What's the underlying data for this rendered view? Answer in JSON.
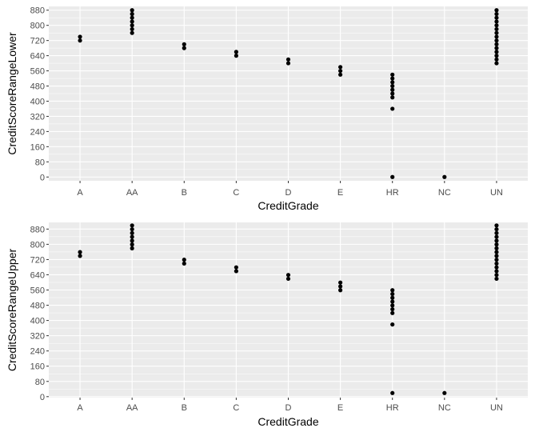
{
  "colors": {
    "panel_background": "#ebebeb",
    "grid_major": "#ffffff",
    "point": "#000000",
    "tick_text": "#4d4d4d",
    "axis_title": "#000000"
  },
  "chart_data": [
    {
      "type": "scatter",
      "xlabel": "CreditGrade",
      "ylabel": "CreditScoreRangeLower",
      "categories": [
        "A",
        "AA",
        "B",
        "C",
        "D",
        "E",
        "HR",
        "NC",
        "UN"
      ],
      "yticks": [
        0,
        80,
        160,
        240,
        320,
        400,
        480,
        560,
        640,
        720,
        800,
        880
      ],
      "ylim": [
        -20,
        900
      ],
      "grid": true,
      "legend": "none",
      "points": [
        {
          "x": "A",
          "y": 720
        },
        {
          "x": "A",
          "y": 740
        },
        {
          "x": "AA",
          "y": 760
        },
        {
          "x": "AA",
          "y": 780
        },
        {
          "x": "AA",
          "y": 800
        },
        {
          "x": "AA",
          "y": 820
        },
        {
          "x": "AA",
          "y": 840
        },
        {
          "x": "AA",
          "y": 860
        },
        {
          "x": "AA",
          "y": 880
        },
        {
          "x": "B",
          "y": 680
        },
        {
          "x": "B",
          "y": 700
        },
        {
          "x": "C",
          "y": 640
        },
        {
          "x": "C",
          "y": 660
        },
        {
          "x": "D",
          "y": 600
        },
        {
          "x": "D",
          "y": 620
        },
        {
          "x": "E",
          "y": 540
        },
        {
          "x": "E",
          "y": 560
        },
        {
          "x": "E",
          "y": 580
        },
        {
          "x": "HR",
          "y": 0
        },
        {
          "x": "HR",
          "y": 360
        },
        {
          "x": "HR",
          "y": 420
        },
        {
          "x": "HR",
          "y": 440
        },
        {
          "x": "HR",
          "y": 460
        },
        {
          "x": "HR",
          "y": 480
        },
        {
          "x": "HR",
          "y": 500
        },
        {
          "x": "HR",
          "y": 520
        },
        {
          "x": "HR",
          "y": 540
        },
        {
          "x": "NC",
          "y": 0
        },
        {
          "x": "UN",
          "y": 600
        },
        {
          "x": "UN",
          "y": 620
        },
        {
          "x": "UN",
          "y": 640
        },
        {
          "x": "UN",
          "y": 660
        },
        {
          "x": "UN",
          "y": 680
        },
        {
          "x": "UN",
          "y": 700
        },
        {
          "x": "UN",
          "y": 720
        },
        {
          "x": "UN",
          "y": 740
        },
        {
          "x": "UN",
          "y": 760
        },
        {
          "x": "UN",
          "y": 780
        },
        {
          "x": "UN",
          "y": 800
        },
        {
          "x": "UN",
          "y": 820
        },
        {
          "x": "UN",
          "y": 840
        },
        {
          "x": "UN",
          "y": 860
        },
        {
          "x": "UN",
          "y": 880
        }
      ]
    },
    {
      "type": "scatter",
      "xlabel": "CreditGrade",
      "ylabel": "CreditScoreRangeUpper",
      "categories": [
        "A",
        "AA",
        "B",
        "C",
        "D",
        "E",
        "HR",
        "NC",
        "UN"
      ],
      "yticks": [
        0,
        80,
        160,
        240,
        320,
        400,
        480,
        560,
        640,
        720,
        800,
        880
      ],
      "ylim": [
        -5,
        915
      ],
      "grid": true,
      "legend": "none",
      "points": [
        {
          "x": "A",
          "y": 739
        },
        {
          "x": "A",
          "y": 759
        },
        {
          "x": "AA",
          "y": 779
        },
        {
          "x": "AA",
          "y": 799
        },
        {
          "x": "AA",
          "y": 819
        },
        {
          "x": "AA",
          "y": 839
        },
        {
          "x": "AA",
          "y": 859
        },
        {
          "x": "AA",
          "y": 879
        },
        {
          "x": "AA",
          "y": 899
        },
        {
          "x": "B",
          "y": 699
        },
        {
          "x": "B",
          "y": 719
        },
        {
          "x": "C",
          "y": 659
        },
        {
          "x": "C",
          "y": 679
        },
        {
          "x": "D",
          "y": 619
        },
        {
          "x": "D",
          "y": 639
        },
        {
          "x": "E",
          "y": 559
        },
        {
          "x": "E",
          "y": 579
        },
        {
          "x": "E",
          "y": 599
        },
        {
          "x": "HR",
          "y": 19
        },
        {
          "x": "HR",
          "y": 379
        },
        {
          "x": "HR",
          "y": 439
        },
        {
          "x": "HR",
          "y": 459
        },
        {
          "x": "HR",
          "y": 479
        },
        {
          "x": "HR",
          "y": 499
        },
        {
          "x": "HR",
          "y": 519
        },
        {
          "x": "HR",
          "y": 539
        },
        {
          "x": "HR",
          "y": 559
        },
        {
          "x": "NC",
          "y": 19
        },
        {
          "x": "UN",
          "y": 619
        },
        {
          "x": "UN",
          "y": 639
        },
        {
          "x": "UN",
          "y": 659
        },
        {
          "x": "UN",
          "y": 679
        },
        {
          "x": "UN",
          "y": 699
        },
        {
          "x": "UN",
          "y": 719
        },
        {
          "x": "UN",
          "y": 739
        },
        {
          "x": "UN",
          "y": 759
        },
        {
          "x": "UN",
          "y": 779
        },
        {
          "x": "UN",
          "y": 799
        },
        {
          "x": "UN",
          "y": 819
        },
        {
          "x": "UN",
          "y": 839
        },
        {
          "x": "UN",
          "y": 859
        },
        {
          "x": "UN",
          "y": 879
        },
        {
          "x": "UN",
          "y": 899
        }
      ]
    }
  ]
}
